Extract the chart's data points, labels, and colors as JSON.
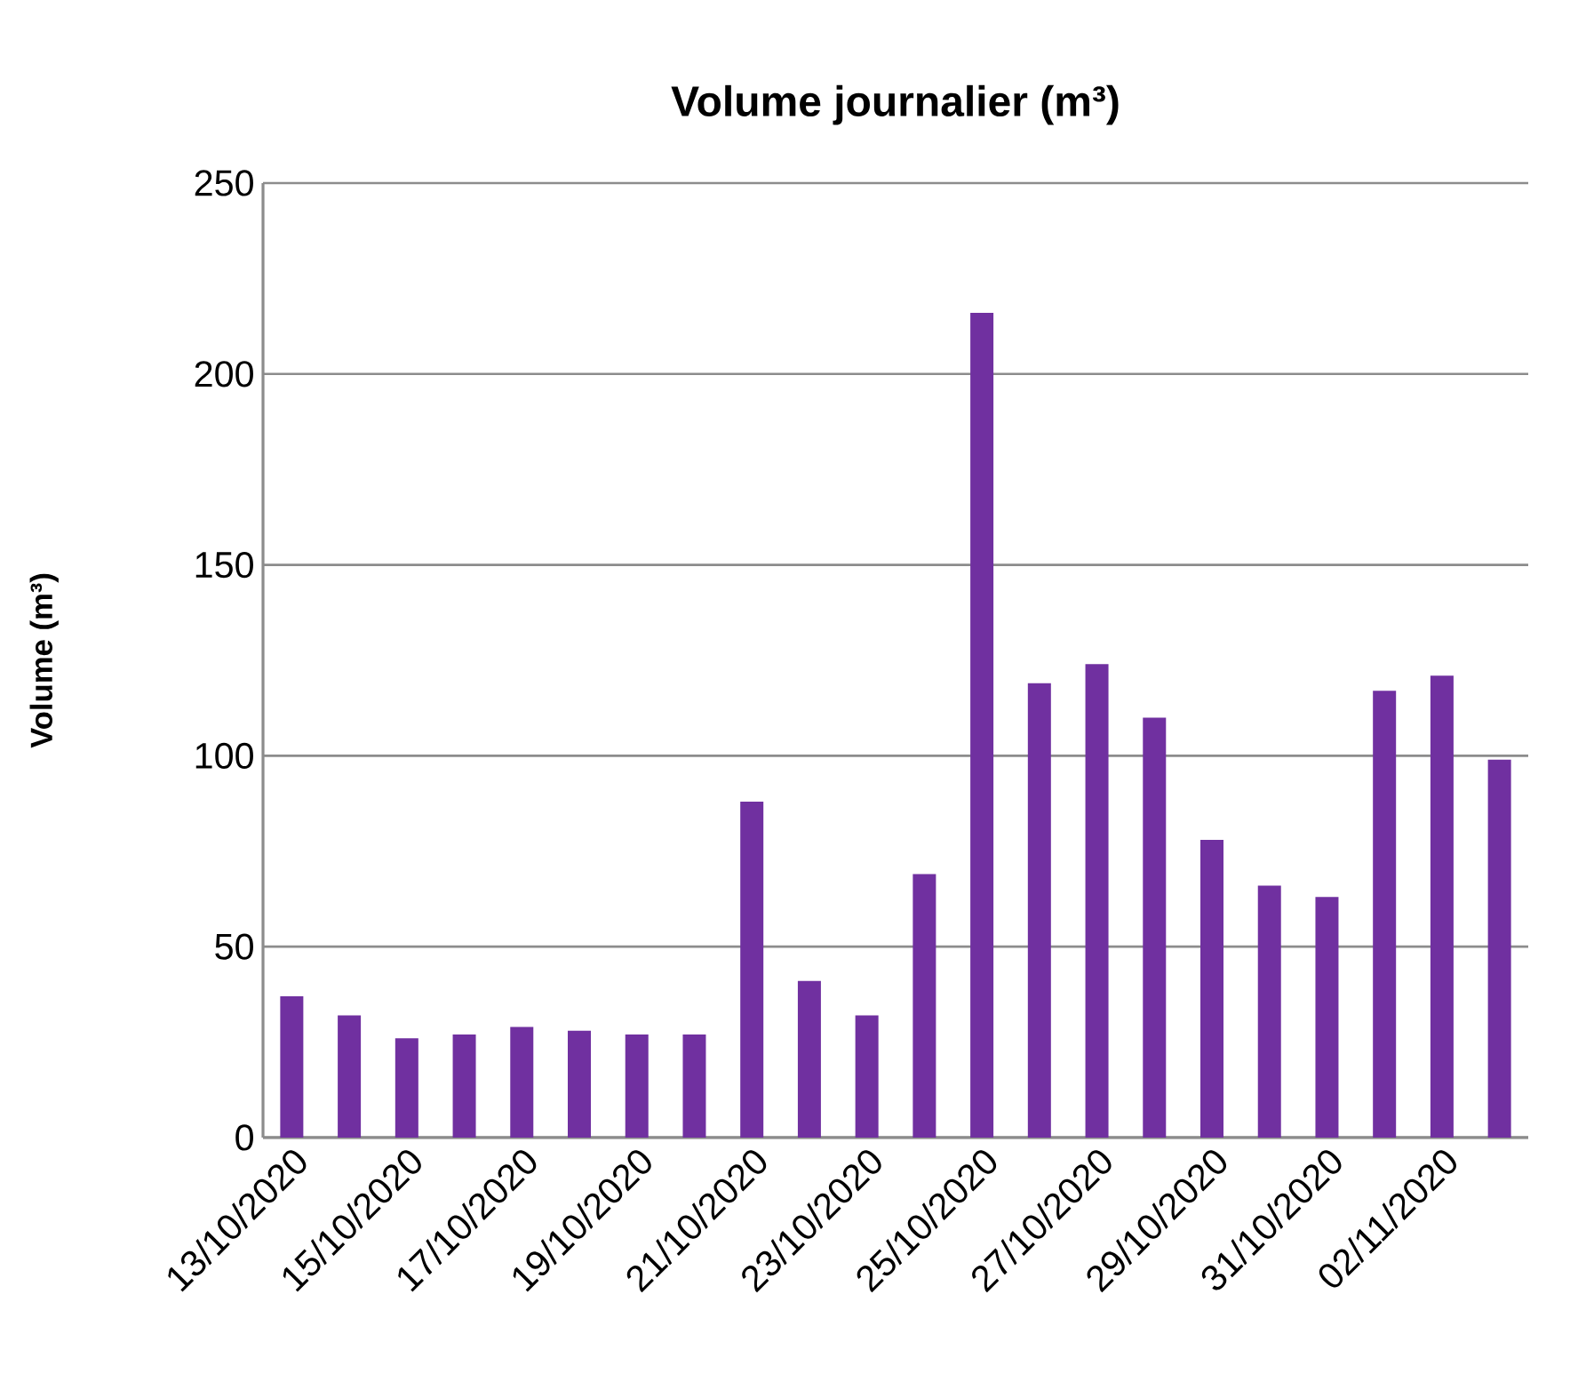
{
  "chart_data": {
    "type": "bar",
    "title": "Volume journalier (m³)",
    "ylabel": "Volume (m³)",
    "categories": [
      "13/10/2020",
      null,
      "15/10/2020",
      null,
      "17/10/2020",
      null,
      "19/10/2020",
      null,
      "21/10/2020",
      null,
      "23/10/2020",
      null,
      "25/10/2020",
      null,
      "27/10/2020",
      null,
      "29/10/2020",
      null,
      "31/10/2020",
      null,
      "02/11/2020",
      null
    ],
    "values": [
      37,
      32,
      26,
      27,
      29,
      28,
      27,
      27,
      88,
      41,
      32,
      69,
      216,
      119,
      124,
      110,
      78,
      66,
      63,
      117,
      121,
      99
    ],
    "color": "#7030a0",
    "ylim": [
      0,
      250
    ],
    "yticks": [
      0,
      50,
      100,
      150,
      200,
      250
    ],
    "grid": "y"
  }
}
